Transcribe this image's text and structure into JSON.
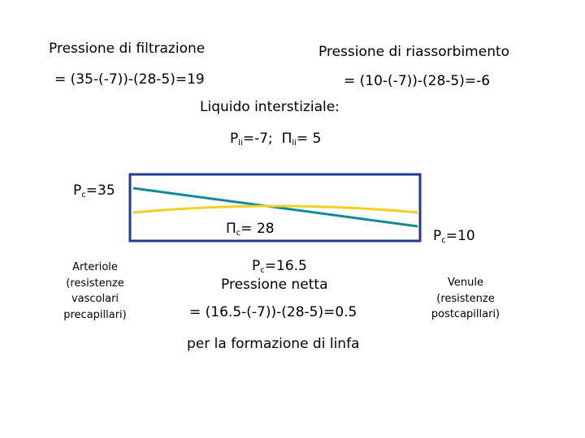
{
  "header": {
    "left": {
      "title": "Pressione di filtrazione",
      "formula": "= (35-(-7))-(28-5)=19"
    },
    "right": {
      "title": "Pressione di riassorbimento",
      "formula": "= (10-(-7))-(28-5)=-6"
    }
  },
  "interstitial": {
    "title": "Liquido interstiziale:",
    "p_symbol": "P",
    "p_sub": "li",
    "p_value": "=-7;",
    "pi_symbol": "Π",
    "pi_sub": "li",
    "pi_value": "= 5"
  },
  "capillary": {
    "arterial_p": {
      "symbol": "P",
      "sub": "c",
      "value": "=35"
    },
    "oncotic": {
      "symbol": "Π",
      "sub": "c",
      "value": "= 28"
    },
    "venous_p": {
      "symbol": "P",
      "sub": "c",
      "value": "=10"
    },
    "mid_p": {
      "symbol": "P",
      "sub": "c",
      "value": "=16.5"
    }
  },
  "arteriole": {
    "lines": [
      "Arteriole",
      "(resistenze",
      "vascolari",
      "precapillari)"
    ]
  },
  "venule": {
    "lines": [
      "Venule",
      "(resistenze",
      "postcapillari)"
    ]
  },
  "net": {
    "title": "Pressione netta",
    "formula": "= (16.5-(-7))-(28-5)=0.5",
    "note": "per la formazione di linfa"
  }
}
